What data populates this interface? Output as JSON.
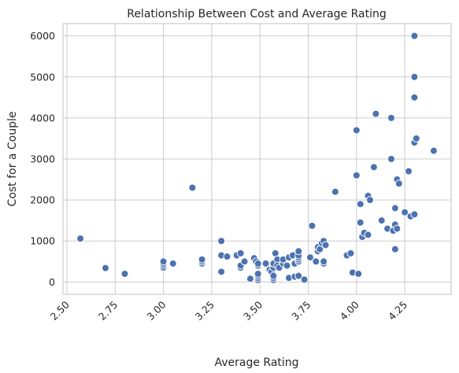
{
  "chart_data": {
    "type": "scatter",
    "title": "Relationship Between Cost and Average Rating",
    "xlabel": "Average Rating",
    "ylabel": "Cost for a Couple",
    "xlim": [
      2.48,
      4.49
    ],
    "ylim": [
      -300,
      6300
    ],
    "xticks": [
      2.5,
      2.75,
      3.0,
      3.25,
      3.5,
      3.75,
      4.0,
      4.25
    ],
    "xtick_labels": [
      "2.50",
      "2.75",
      "3.00",
      "3.25",
      "3.50",
      "3.75",
      "4.00",
      "4.25"
    ],
    "yticks": [
      0,
      1000,
      2000,
      3000,
      4000,
      5000,
      6000
    ],
    "ytick_labels": [
      "0",
      "1000",
      "2000",
      "3000",
      "4000",
      "5000",
      "6000"
    ],
    "grid": true,
    "legend": "none",
    "color": "#4c72b0",
    "points": [
      [
        2.57,
        1060
      ],
      [
        2.7,
        340
      ],
      [
        2.8,
        200
      ],
      [
        3.0,
        350
      ],
      [
        3.0,
        400
      ],
      [
        3.0,
        450
      ],
      [
        3.0,
        500
      ],
      [
        3.05,
        450
      ],
      [
        3.15,
        2300
      ],
      [
        3.2,
        450
      ],
      [
        3.2,
        500
      ],
      [
        3.2,
        550
      ],
      [
        3.3,
        1000
      ],
      [
        3.3,
        650
      ],
      [
        3.3,
        250
      ],
      [
        3.33,
        620
      ],
      [
        3.38,
        650
      ],
      [
        3.4,
        700
      ],
      [
        3.4,
        350
      ],
      [
        3.4,
        400
      ],
      [
        3.42,
        500
      ],
      [
        3.45,
        80
      ],
      [
        3.47,
        580
      ],
      [
        3.48,
        500
      ],
      [
        3.49,
        50
      ],
      [
        3.49,
        100
      ],
      [
        3.49,
        150
      ],
      [
        3.49,
        200
      ],
      [
        3.49,
        400
      ],
      [
        3.49,
        450
      ],
      [
        3.53,
        450
      ],
      [
        3.55,
        300
      ],
      [
        3.56,
        250
      ],
      [
        3.57,
        50
      ],
      [
        3.57,
        100
      ],
      [
        3.57,
        150
      ],
      [
        3.57,
        350
      ],
      [
        3.57,
        450
      ],
      [
        3.58,
        700
      ],
      [
        3.59,
        550
      ],
      [
        3.59,
        400
      ],
      [
        3.6,
        350
      ],
      [
        3.62,
        450
      ],
      [
        3.62,
        550
      ],
      [
        3.64,
        400
      ],
      [
        3.65,
        100
      ],
      [
        3.65,
        600
      ],
      [
        3.67,
        650
      ],
      [
        3.68,
        450
      ],
      [
        3.68,
        130
      ],
      [
        3.7,
        150
      ],
      [
        3.7,
        500
      ],
      [
        3.7,
        550
      ],
      [
        3.7,
        600
      ],
      [
        3.7,
        650
      ],
      [
        3.7,
        750
      ],
      [
        3.73,
        60
      ],
      [
        3.76,
        600
      ],
      [
        3.77,
        1370
      ],
      [
        3.79,
        500
      ],
      [
        3.8,
        750
      ],
      [
        3.8,
        850
      ],
      [
        3.81,
        800
      ],
      [
        3.82,
        950
      ],
      [
        3.83,
        1000
      ],
      [
        3.83,
        450
      ],
      [
        3.83,
        500
      ],
      [
        3.84,
        900
      ],
      [
        3.89,
        2200
      ],
      [
        3.95,
        650
      ],
      [
        3.97,
        700
      ],
      [
        3.98,
        230
      ],
      [
        4.0,
        3700
      ],
      [
        4.0,
        2600
      ],
      [
        4.01,
        200
      ],
      [
        4.02,
        1900
      ],
      [
        4.02,
        1450
      ],
      [
        4.03,
        1100
      ],
      [
        4.04,
        1200
      ],
      [
        4.06,
        1150
      ],
      [
        4.06,
        2100
      ],
      [
        4.07,
        2000
      ],
      [
        4.09,
        2800
      ],
      [
        4.1,
        4100
      ],
      [
        4.13,
        1500
      ],
      [
        4.16,
        1300
      ],
      [
        4.18,
        4000
      ],
      [
        4.18,
        3000
      ],
      [
        4.19,
        1250
      ],
      [
        4.2,
        1400
      ],
      [
        4.2,
        1800
      ],
      [
        4.2,
        800
      ],
      [
        4.21,
        1300
      ],
      [
        4.21,
        2500
      ],
      [
        4.22,
        2400
      ],
      [
        4.25,
        1700
      ],
      [
        4.27,
        2700
      ],
      [
        4.28,
        1600
      ],
      [
        4.3,
        6000
      ],
      [
        4.3,
        5000
      ],
      [
        4.3,
        4500
      ],
      [
        4.3,
        3400
      ],
      [
        4.3,
        1650
      ],
      [
        4.31,
        3500
      ],
      [
        4.4,
        3200
      ]
    ]
  }
}
